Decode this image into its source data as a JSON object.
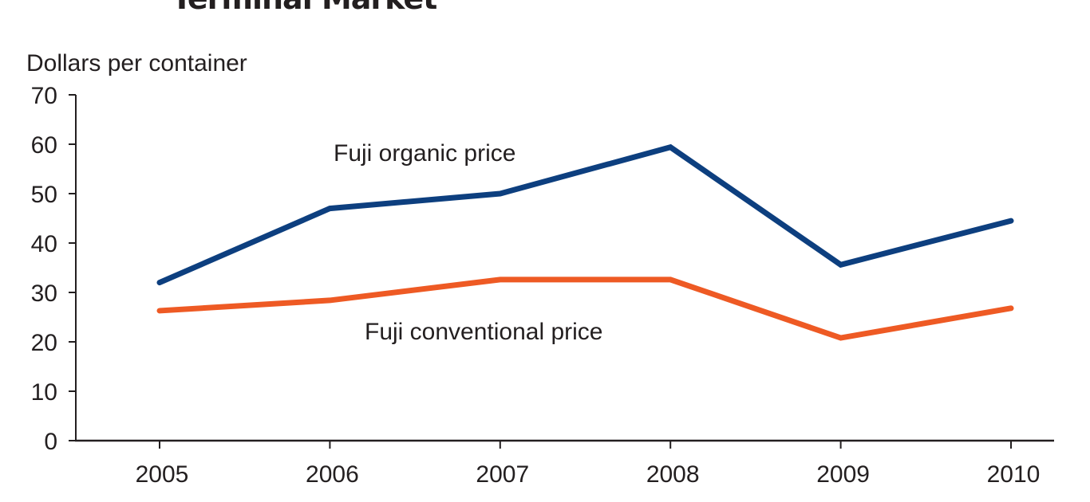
{
  "chart_data": {
    "type": "line",
    "title": "Terminal Market",
    "ylabel": "Dollars per container",
    "xlabel": "",
    "categories": [
      "2005",
      "2006",
      "2007",
      "2008",
      "2009",
      "2010"
    ],
    "ylim": [
      0,
      70
    ],
    "yticks": [
      0,
      10,
      20,
      30,
      40,
      50,
      60,
      70
    ],
    "grid": false,
    "series": [
      {
        "name": "Fuji organic price",
        "color": "#0d3f7f",
        "values": [
          32,
          47,
          50,
          59.4,
          35.6,
          44.5
        ]
      },
      {
        "name": "Fuji conventional price",
        "color": "#ee5a24",
        "values": [
          26.3,
          28.4,
          32.6,
          32.6,
          20.8,
          26.8
        ]
      }
    ]
  }
}
